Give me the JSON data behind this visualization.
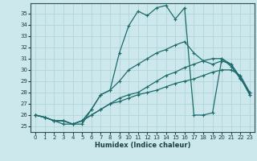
{
  "xlabel": "Humidex (Indice chaleur)",
  "bg_color": "#cce8ec",
  "line_color": "#1e6b6b",
  "grid_color": "#b0d4d8",
  "xlim": [
    -0.5,
    23.5
  ],
  "ylim": [
    24.5,
    35.9
  ],
  "yticks": [
    25,
    26,
    27,
    28,
    29,
    30,
    31,
    32,
    33,
    34,
    35
  ],
  "xticks": [
    0,
    1,
    2,
    3,
    4,
    5,
    6,
    7,
    8,
    9,
    10,
    11,
    12,
    13,
    14,
    15,
    16,
    17,
    18,
    19,
    20,
    21,
    22,
    23
  ],
  "line1_x": [
    0,
    1,
    2,
    3,
    4,
    5,
    6,
    7,
    8,
    9,
    10,
    11,
    12,
    13,
    14,
    15,
    16,
    17,
    18,
    19,
    20,
    21,
    22,
    23
  ],
  "line1_y": [
    26.0,
    25.8,
    25.5,
    25.5,
    25.2,
    25.2,
    26.5,
    27.8,
    28.2,
    31.5,
    33.9,
    35.2,
    34.8,
    35.5,
    35.7,
    34.5,
    35.5,
    26.0,
    26.0,
    26.2,
    31.0,
    30.5,
    29.3,
    27.8
  ],
  "line2_x": [
    0,
    1,
    2,
    3,
    4,
    5,
    6,
    7,
    8,
    9,
    10,
    11,
    12,
    13,
    14,
    15,
    16,
    17,
    18,
    19,
    20,
    21,
    22,
    23
  ],
  "line2_y": [
    26.0,
    25.8,
    25.5,
    25.5,
    25.2,
    25.5,
    26.5,
    27.8,
    28.2,
    29.0,
    30.0,
    30.5,
    31.0,
    31.5,
    31.8,
    32.2,
    32.5,
    31.5,
    30.8,
    30.5,
    30.8,
    30.5,
    29.3,
    27.8
  ],
  "line3_x": [
    0,
    1,
    2,
    3,
    4,
    5,
    6,
    7,
    8,
    9,
    10,
    11,
    12,
    13,
    14,
    15,
    16,
    17,
    18,
    19,
    20,
    21,
    22,
    23
  ],
  "line3_y": [
    26.0,
    25.8,
    25.5,
    25.2,
    25.2,
    25.5,
    26.0,
    26.5,
    27.0,
    27.5,
    27.8,
    28.0,
    28.5,
    29.0,
    29.5,
    29.8,
    30.2,
    30.5,
    30.8,
    31.0,
    31.0,
    30.3,
    29.2,
    28.0
  ],
  "line4_x": [
    0,
    1,
    2,
    3,
    4,
    5,
    6,
    7,
    8,
    9,
    10,
    11,
    12,
    13,
    14,
    15,
    16,
    17,
    18,
    19,
    20,
    21,
    22,
    23
  ],
  "line4_y": [
    26.0,
    25.8,
    25.5,
    25.5,
    25.2,
    25.5,
    26.0,
    26.5,
    27.0,
    27.2,
    27.5,
    27.8,
    28.0,
    28.2,
    28.5,
    28.8,
    29.0,
    29.2,
    29.5,
    29.8,
    30.0,
    30.0,
    29.5,
    28.0
  ]
}
